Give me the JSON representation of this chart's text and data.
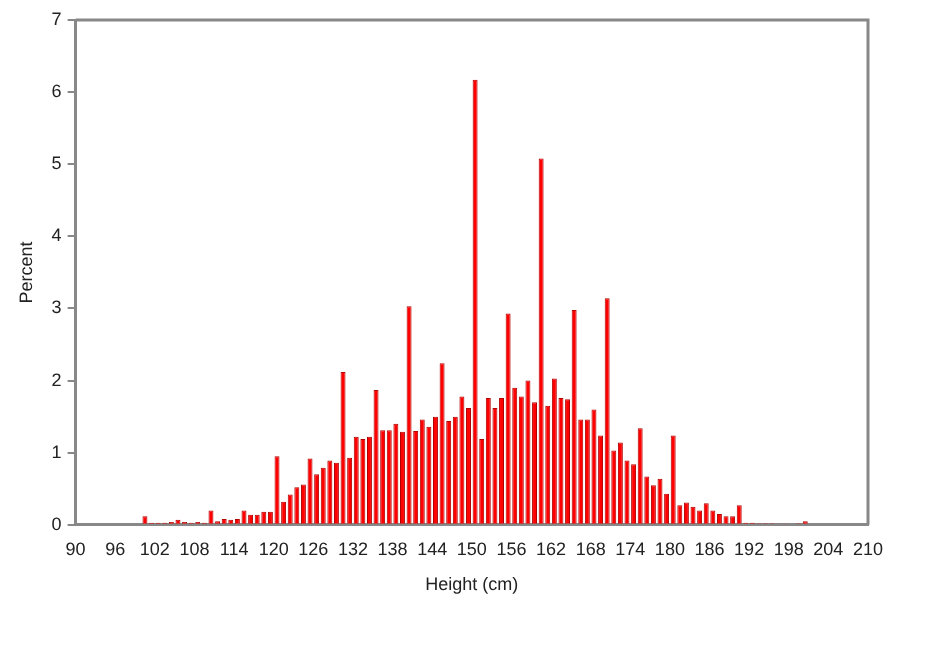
{
  "chart_data": {
    "type": "histogram",
    "xlabel": "Height (cm)",
    "ylabel": "Percent",
    "color": "#ff0000",
    "bins": [
      100,
      101,
      102,
      103,
      104,
      105,
      106,
      107,
      108,
      109,
      110,
      111,
      112,
      113,
      114,
      115,
      116,
      117,
      118,
      119,
      120,
      121,
      122,
      123,
      124,
      125,
      126,
      127,
      128,
      129,
      130,
      131,
      132,
      133,
      134,
      135,
      136,
      137,
      138,
      139,
      140,
      141,
      142,
      143,
      144,
      145,
      146,
      147,
      148,
      149,
      150,
      151,
      152,
      153,
      154,
      155,
      156,
      157,
      158,
      159,
      160,
      161,
      162,
      163,
      164,
      165,
      166,
      167,
      168,
      169,
      170,
      171,
      172,
      173,
      174,
      175,
      176,
      177,
      178,
      179,
      180,
      181,
      182,
      183,
      184,
      185,
      186,
      187,
      188,
      189,
      190,
      191,
      192,
      193,
      194,
      195,
      196,
      197,
      198,
      199,
      200,
      201
    ],
    "values": [
      0.12,
      0.03,
      0.03,
      0.03,
      0.04,
      0.07,
      0.04,
      0.03,
      0.04,
      0.03,
      0.2,
      0.05,
      0.08,
      0.07,
      0.08,
      0.2,
      0.14,
      0.14,
      0.18,
      0.18,
      0.95,
      0.32,
      0.42,
      0.52,
      0.56,
      0.92,
      0.7,
      0.79,
      0.89,
      0.86,
      2.12,
      0.93,
      1.22,
      1.19,
      1.22,
      1.87,
      1.31,
      1.31,
      1.4,
      1.29,
      3.03,
      1.3,
      1.46,
      1.36,
      1.5,
      2.24,
      1.44,
      1.5,
      1.78,
      1.62,
      6.17,
      1.19,
      1.76,
      1.62,
      1.76,
      2.93,
      1.9,
      1.78,
      2.0,
      1.7,
      5.08,
      1.65,
      2.03,
      1.76,
      1.74,
      2.98,
      1.46,
      1.46,
      1.6,
      1.24,
      3.14,
      1.03,
      1.14,
      0.89,
      0.84,
      1.34,
      0.67,
      0.55,
      0.64,
      0.43,
      1.24,
      0.27,
      0.31,
      0.25,
      0.2,
      0.3,
      0.2,
      0.15,
      0.12,
      0.12,
      0.27,
      0.03,
      0.03,
      0.02,
      0.02,
      0.02,
      0.01,
      0.01,
      null,
      0.02,
      0.05
    ],
    "xlim": [
      90,
      210
    ],
    "xticks": [
      90,
      96,
      102,
      108,
      114,
      120,
      126,
      132,
      138,
      144,
      150,
      156,
      162,
      168,
      174,
      180,
      186,
      192,
      198,
      204,
      210
    ],
    "ylim": [
      0,
      7
    ],
    "yticks": [
      0,
      1,
      2,
      3,
      4,
      5,
      6,
      7
    ],
    "grid": false,
    "legend": false
  }
}
